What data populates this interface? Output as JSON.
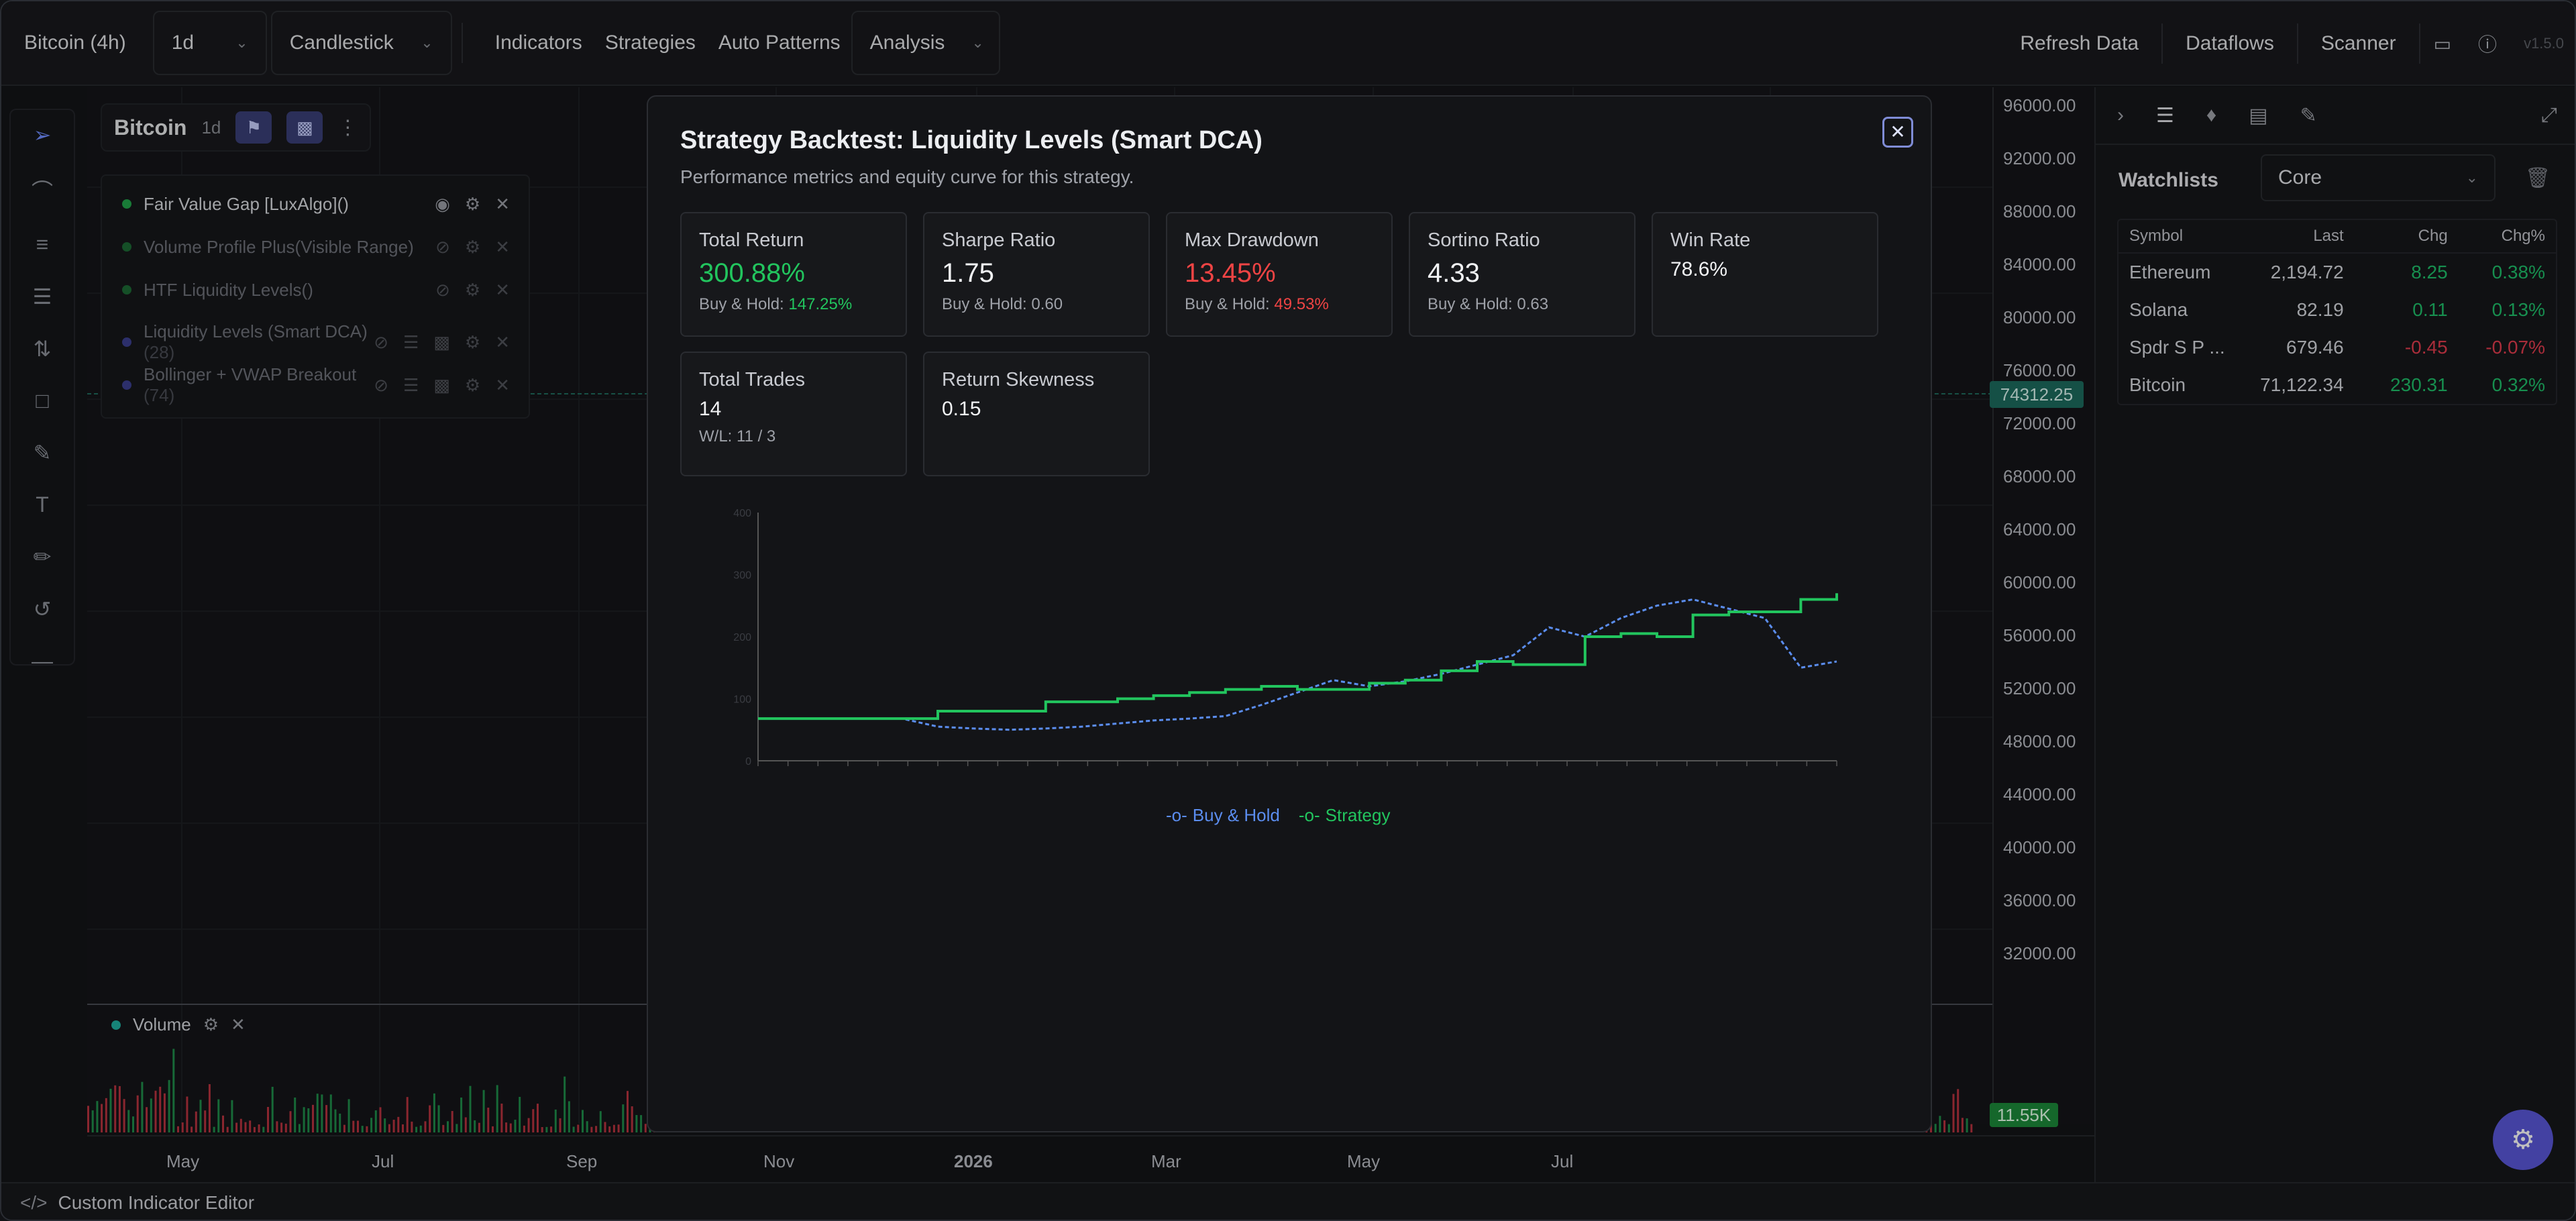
{
  "topbar": {
    "symbol": "Bitcoin (4h)",
    "interval": "1d",
    "chart_type": "Candlestick",
    "menu": [
      "Indicators",
      "Strategies",
      "Auto Patterns",
      "Analysis"
    ],
    "right": [
      "Refresh Data",
      "Dataflows",
      "Scanner"
    ],
    "version": "v1.5.0"
  },
  "chart_header": {
    "title": "Bitcoin",
    "timeframe": "1d"
  },
  "indicators": [
    {
      "name": "Fair Value Gap [LuxAlgo]()",
      "count": "",
      "visible": true,
      "color": "#22a54a"
    },
    {
      "name": "Volume Profile Plus(Visible Range)",
      "count": "",
      "visible": false,
      "color": "#22a54a"
    },
    {
      "name": "HTF Liquidity Levels()",
      "count": "",
      "visible": false,
      "color": "#22a54a"
    },
    {
      "name": "Liquidity Levels (Smart DCA)",
      "count": "(28)",
      "visible": false,
      "color": "#3b3f8f"
    },
    {
      "name": "Bollinger + VWAP Breakout",
      "count": "(74)",
      "visible": false,
      "color": "#3b3f8f"
    }
  ],
  "price_scale": [
    "96000.00",
    "92000.00",
    "88000.00",
    "84000.00",
    "80000.00",
    "76000.00",
    "72000.00",
    "68000.00",
    "64000.00",
    "60000.00",
    "56000.00",
    "52000.00",
    "48000.00",
    "44000.00",
    "40000.00",
    "36000.00",
    "32000.00"
  ],
  "current_price": "74312.25",
  "volume": {
    "label": "Volume",
    "last": "11.55K"
  },
  "time_axis": [
    "May",
    "Jul",
    "Sep",
    "Nov",
    "2026",
    "Mar",
    "May",
    "Jul"
  ],
  "bottom_bar": {
    "label": "Custom Indicator Editor"
  },
  "right_panel": {
    "title": "Watchlists",
    "list": "Core",
    "columns": [
      "Symbol",
      "Last",
      "Chg",
      "Chg%"
    ],
    "rows": [
      {
        "symbol": "Ethereum",
        "last": "2,194.72",
        "chg": "8.25",
        "chgp": "0.38%",
        "dir": "pos"
      },
      {
        "symbol": "Solana",
        "last": "82.19",
        "chg": "0.11",
        "chgp": "0.13%",
        "dir": "pos"
      },
      {
        "symbol": "Spdr S P ...",
        "last": "679.46",
        "chg": "-0.45",
        "chgp": "-0.07%",
        "dir": "neg"
      },
      {
        "symbol": "Bitcoin",
        "last": "71,122.34",
        "chg": "230.31",
        "chgp": "0.32%",
        "dir": "pos"
      }
    ]
  },
  "modal": {
    "title": "Strategy Backtest: Liquidity Levels (Smart DCA)",
    "subtitle": "Performance metrics and equity curve for this strategy.",
    "cards": {
      "total_return": {
        "label": "Total Return",
        "value": "300.88%",
        "foot_label": "Buy & Hold: ",
        "foot_value": "147.25%"
      },
      "sharpe": {
        "label": "Sharpe Ratio",
        "value": "1.75",
        "foot": "Buy & Hold: 0.60"
      },
      "max_dd": {
        "label": "Max Drawdown",
        "value": "13.45%",
        "foot_label": "Buy & Hold: ",
        "foot_value": "49.53%"
      },
      "sortino": {
        "label": "Sortino Ratio",
        "value": "4.33",
        "foot": "Buy & Hold: 0.63"
      },
      "win_rate": {
        "label": "Win Rate",
        "value": "78.6%"
      },
      "total_trades": {
        "label": "Total Trades",
        "value": "14",
        "foot": "W/L: 11 / 3"
      },
      "skewness": {
        "label": "Return Skewness",
        "value": "0.15"
      }
    },
    "legend": {
      "buy_hold": "Buy & Hold",
      "strategy": "Strategy"
    }
  },
  "colors": {
    "green": "#22c55e",
    "red": "#ef4444",
    "blue": "#5b8def",
    "accent": "#5a57d8"
  },
  "chart_data": {
    "type": "line",
    "title": "",
    "xlabel": "",
    "ylabel": "",
    "ylim": [
      0,
      400
    ],
    "y_ticks": [
      0,
      100,
      200,
      300,
      400
    ],
    "x": [
      0,
      1,
      2,
      3,
      4,
      5,
      6,
      7,
      8,
      9,
      10,
      11,
      12,
      13,
      14,
      15,
      16,
      17,
      18,
      19,
      20,
      21,
      22,
      23,
      24,
      25,
      26,
      27,
      28,
      29,
      30
    ],
    "series": [
      {
        "name": "Buy & Hold",
        "values": [
          68,
          68,
          68,
          68,
          68,
          55,
          52,
          50,
          52,
          55,
          60,
          65,
          68,
          72,
          90,
          110,
          130,
          120,
          128,
          140,
          155,
          170,
          215,
          200,
          230,
          250,
          260,
          245,
          230,
          150,
          160
        ]
      },
      {
        "name": "Strategy",
        "values": [
          68,
          68,
          68,
          68,
          68,
          80,
          80,
          80,
          95,
          95,
          100,
          105,
          110,
          115,
          120,
          115,
          115,
          125,
          130,
          145,
          160,
          155,
          155,
          200,
          205,
          200,
          235,
          240,
          240,
          260,
          270
        ]
      }
    ]
  }
}
